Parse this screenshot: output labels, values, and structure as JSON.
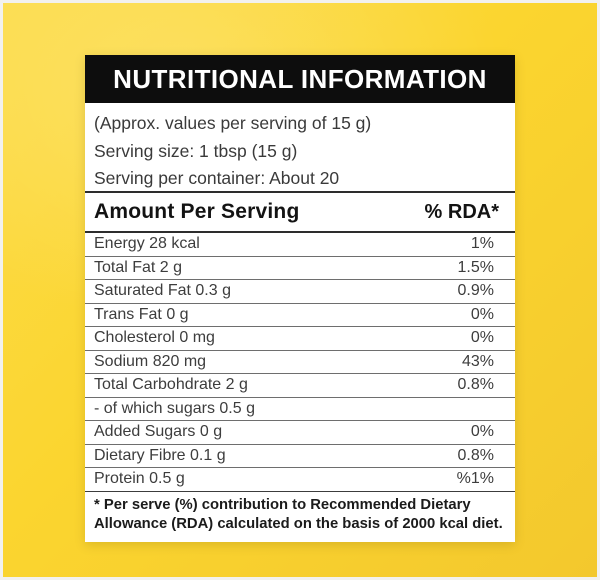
{
  "label": {
    "title": "NUTRITIONAL INFORMATION",
    "serving_info": [
      "(Approx. values per serving of 15 g)",
      "Serving size: 1 tbsp (15 g)",
      "Serving per container: About 20"
    ],
    "columns": {
      "amount": "Amount Per Serving",
      "rda": "% RDA*"
    },
    "rows": [
      {
        "name": "Energy 28 kcal",
        "rda": "1%"
      },
      {
        "name": "Total Fat 2 g",
        "rda": "1.5%"
      },
      {
        "name": "Saturated Fat 0.3 g",
        "rda": "0.9%"
      },
      {
        "name": "Trans Fat 0 g",
        "rda": "0%"
      },
      {
        "name": "Cholesterol 0 mg",
        "rda": "0%"
      },
      {
        "name": "Sodium 820 mg",
        "rda": "43%"
      },
      {
        "name": "Total Carbohdrate 2 g",
        "rda": "0.8%"
      },
      {
        "name": "- of which sugars 0.5 g",
        "rda": ""
      },
      {
        "name": "Added Sugars 0 g",
        "rda": "0%"
      },
      {
        "name": "Dietary Fibre 0.1 g",
        "rda": "0.8%"
      },
      {
        "name": "Protein 0.5 g",
        "rda": "%1%"
      }
    ],
    "footnote": "* Per serve (%) contribution to Recommended Dietary Allowance (RDA) calculated on the basis of 2000 kcal diet."
  },
  "colors": {
    "background_yellow": "#fbd52f",
    "background_yellow_light": "#fcdc49",
    "background_yellow_dark": "#f3c82d",
    "header_black": "#0d0d0d",
    "panel_white": "#ffffff"
  }
}
